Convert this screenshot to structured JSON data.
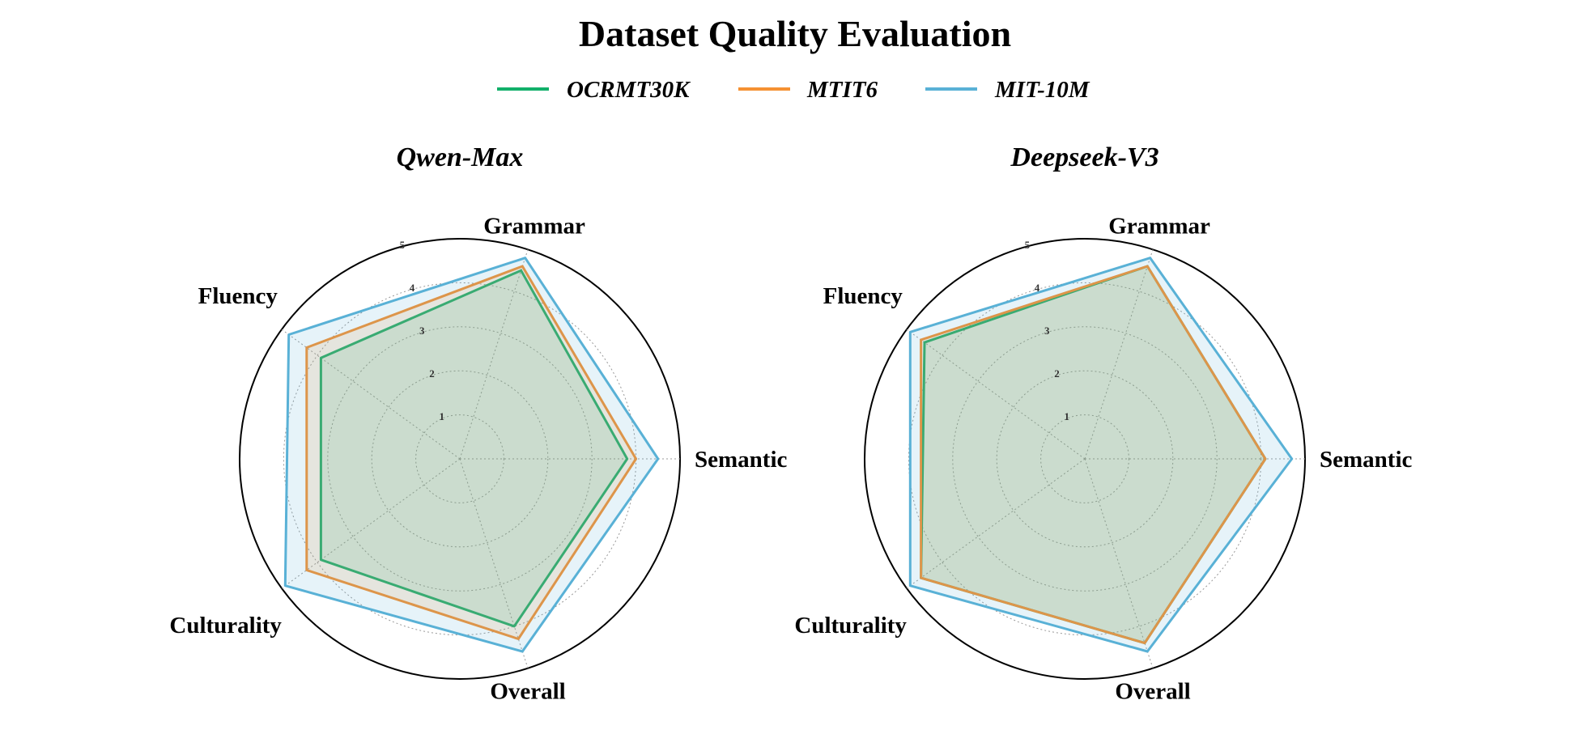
{
  "title": "Dataset Quality Evaluation",
  "colors": {
    "OCRMT30K": "#12b06a",
    "MTIT6": "#f59132",
    "MIT-10M": "#59b1d6"
  },
  "chart_data": [
    {
      "type": "radar",
      "title": "Qwen-Max",
      "axes": [
        "Semantic",
        "Grammar",
        "Fluency",
        "Culturality",
        "Overall"
      ],
      "rlim": [
        0,
        5
      ],
      "rticks": [
        1,
        2,
        3,
        4,
        5
      ],
      "grid": true,
      "legend": "top-center",
      "series": [
        {
          "name": "OCRMT30K",
          "values": [
            3.8,
            4.5,
            3.9,
            3.9,
            4.0
          ]
        },
        {
          "name": "MTIT6",
          "values": [
            4.0,
            4.6,
            4.3,
            4.3,
            4.3
          ]
        },
        {
          "name": "MIT-10M",
          "values": [
            4.5,
            4.8,
            4.8,
            4.9,
            4.6
          ]
        }
      ]
    },
    {
      "type": "radar",
      "title": "Deepseek-V3",
      "axes": [
        "Semantic",
        "Grammar",
        "Fluency",
        "Culturality",
        "Overall"
      ],
      "rlim": [
        0,
        5
      ],
      "rticks": [
        1,
        2,
        3,
        4,
        5
      ],
      "grid": true,
      "legend": "top-center",
      "series": [
        {
          "name": "OCRMT30K",
          "values": [
            4.1,
            4.6,
            4.5,
            4.6,
            4.4
          ]
        },
        {
          "name": "MTIT6",
          "values": [
            4.1,
            4.6,
            4.6,
            4.6,
            4.4
          ]
        },
        {
          "name": "MIT-10M",
          "values": [
            4.7,
            4.8,
            4.9,
            4.9,
            4.6
          ]
        }
      ]
    }
  ]
}
